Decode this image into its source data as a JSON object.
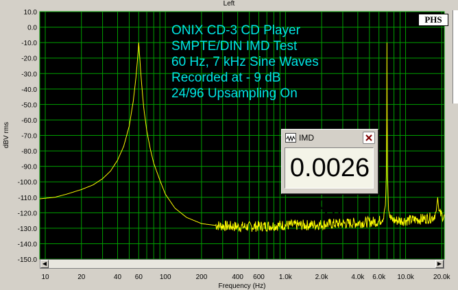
{
  "window": {
    "title": "Left"
  },
  "badge": "PHS",
  "annotations": [
    "ONIX CD-3 CD Player",
    "SMPTE/DIN IMD Test",
    "60 Hz, 7 kHz Sine Waves",
    "Recorded at - 9 dB",
    "24/96 Upsampling On"
  ],
  "imd_window": {
    "title": "IMD",
    "value": "0.0026 %",
    "app_icon": "waveform-icon",
    "close_icon": "close-icon"
  },
  "scrollbar": {
    "left_icon": "arrow-left-icon",
    "right_icon": "arrow-right-icon"
  },
  "colors": {
    "plot_background": "#000000",
    "grid": "#00a000",
    "trace": "#ffff00",
    "annotation_text": "#00e5e5"
  },
  "chart_data": {
    "type": "line",
    "title": "",
    "xlabel": "Frequency (Hz)",
    "ylabel": "dBV rms",
    "xscale": "log",
    "xlim": [
      9,
      21000
    ],
    "ylim": [
      -150,
      10
    ],
    "grid": true,
    "y_ticks": [
      "10.0",
      "0.0",
      "-10.0",
      "-20.0",
      "-30.0",
      "-40.0",
      "-50.0",
      "-60.0",
      "-70.0",
      "-80.0",
      "-90.0",
      "-100.0",
      "-110.0",
      "-120.0",
      "-130.0",
      "-140.0",
      "-150.0"
    ],
    "y_tick_values": [
      10,
      0,
      -10,
      -20,
      -30,
      -40,
      -50,
      -60,
      -70,
      -80,
      -90,
      -100,
      -110,
      -120,
      -130,
      -140,
      -150
    ],
    "x_ticks": [
      "10",
      "20",
      "40",
      "60",
      "100",
      "200",
      "400",
      "600",
      "1.0k",
      "2.0k",
      "4.0k",
      "6.0k",
      "10.0k",
      "20.0k"
    ],
    "x_tick_values": [
      10,
      20,
      40,
      60,
      100,
      200,
      400,
      600,
      1000,
      2000,
      4000,
      6000,
      10000,
      20000
    ],
    "series": [
      {
        "x": [
          9,
          12,
          15,
          20,
          25,
          30,
          35,
          40,
          45,
          50,
          54,
          57,
          59,
          60,
          61,
          63,
          66,
          70,
          75,
          80,
          90,
          100,
          120,
          150,
          200,
          250,
          300,
          400,
          500,
          700,
          1000,
          1500,
          2000,
          3000,
          4000,
          5000,
          6000,
          6500,
          6800,
          6950,
          7000,
          7050,
          7200,
          7500,
          8000,
          10000,
          14000,
          17000,
          18000,
          18500,
          19000,
          21000
        ],
        "y": [
          -111,
          -110,
          -108,
          -105,
          -102,
          -98,
          -93,
          -86,
          -77,
          -64,
          -48,
          -32,
          -18,
          -10,
          -18,
          -34,
          -52,
          -67,
          -79,
          -88,
          -99,
          -108,
          -117,
          -123,
          -127,
          -128,
          -128.5,
          -129,
          -129,
          -128.5,
          -128,
          -128,
          -127.5,
          -127,
          -126.5,
          -126,
          -125.5,
          -123,
          -115,
          -90,
          -10,
          -90,
          -118,
          -124,
          -125,
          -125,
          -124,
          -123,
          -119,
          -110,
          -120,
          -123
        ]
      }
    ]
  }
}
